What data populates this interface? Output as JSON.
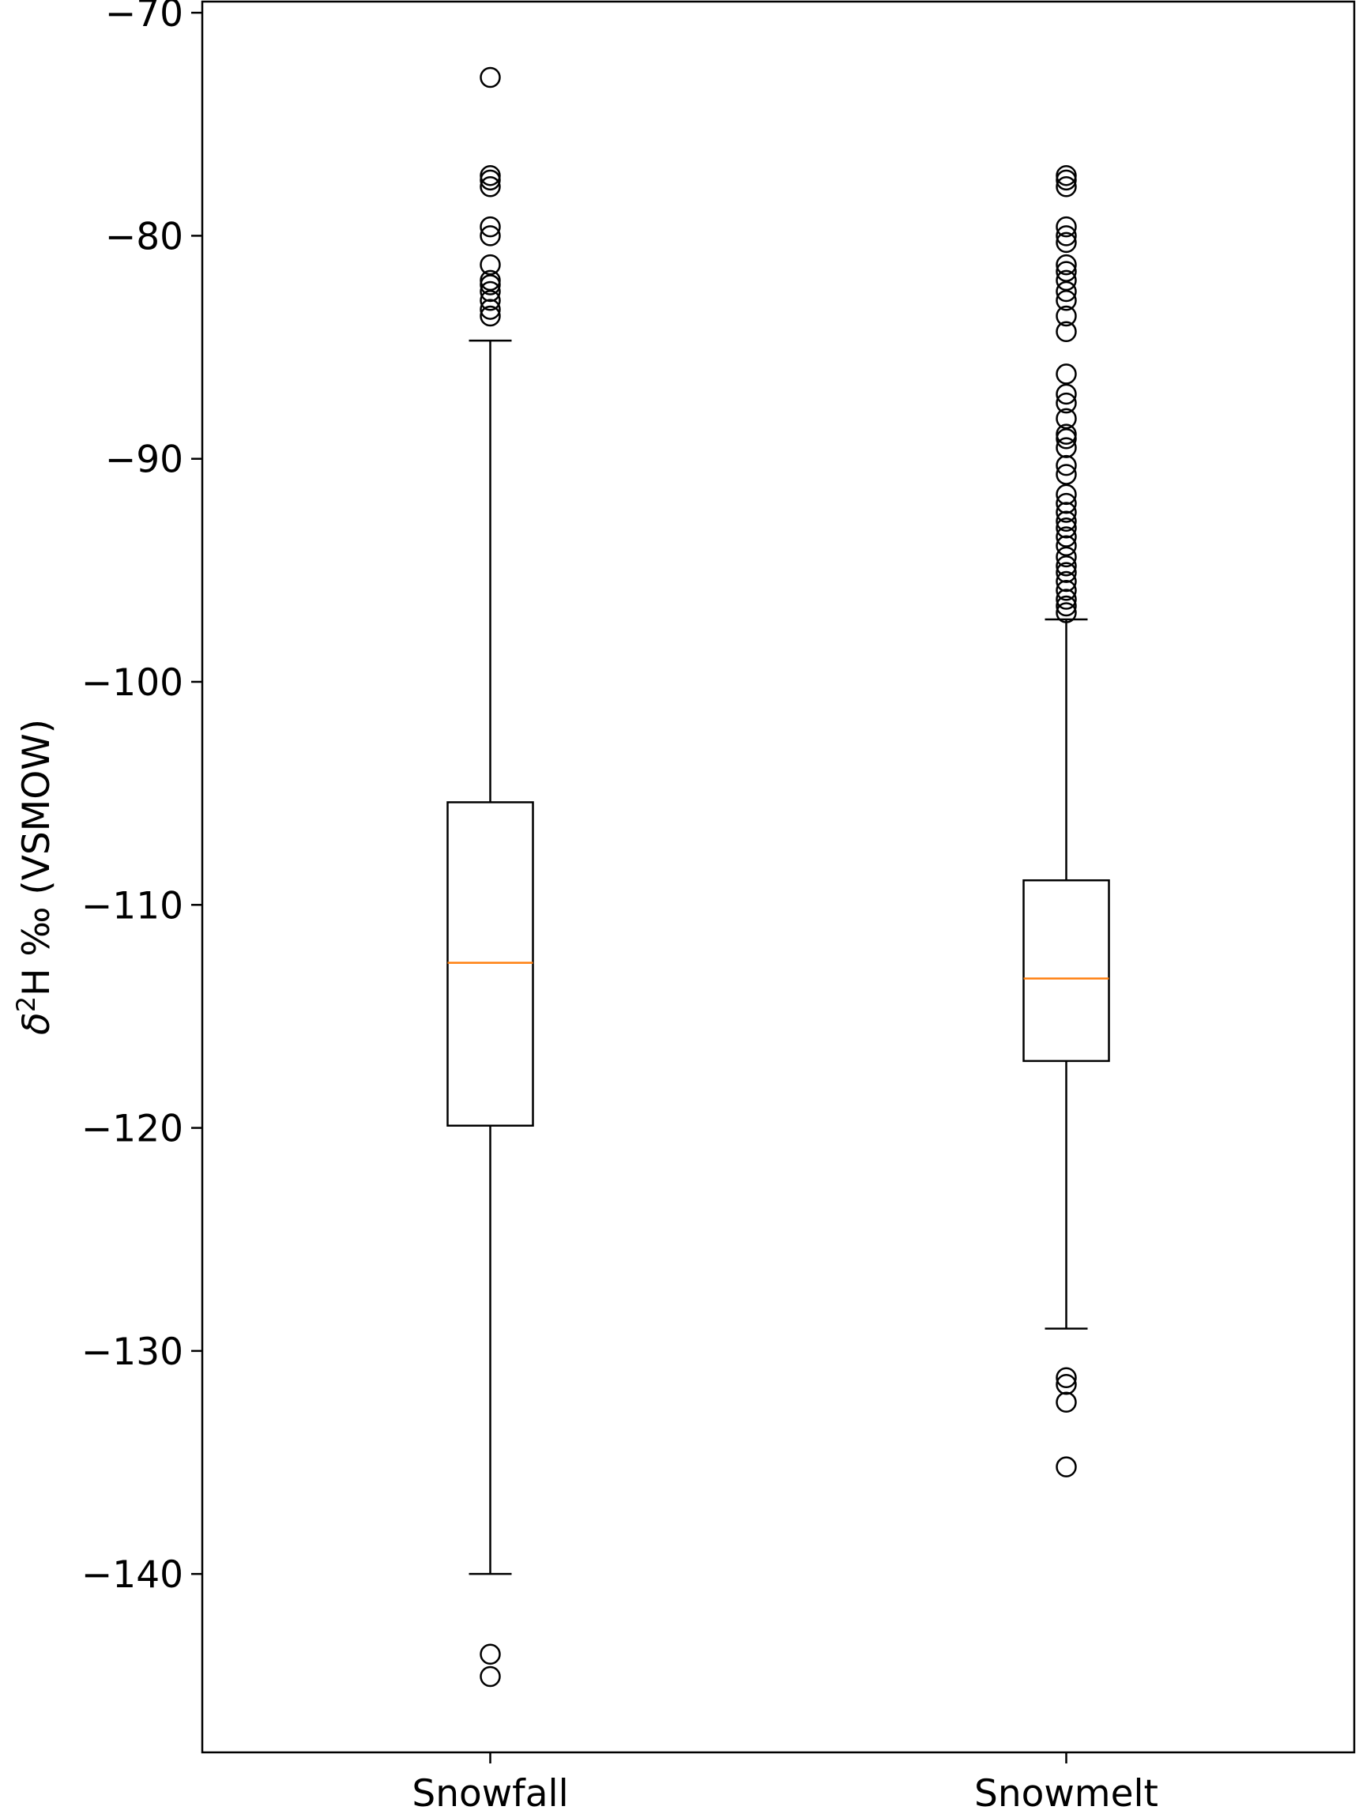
{
  "chart_data": {
    "type": "box",
    "title": "",
    "xlabel": "",
    "ylabel": {
      "prefix": "δ",
      "superscript": "2",
      "suffix": "H ‰ (VSMOW)"
    },
    "ylim": [
      -148,
      -69.5
    ],
    "yticks": [
      -70,
      -80,
      -90,
      -100,
      -110,
      -120,
      -130,
      -140
    ],
    "ytick_labels": [
      "−70",
      "−80",
      "−90",
      "−100",
      "−110",
      "−120",
      "−130",
      "−140"
    ],
    "grid": false,
    "colors": {
      "box": "#000000",
      "median": "#ff7f0e",
      "flier": "#000000"
    },
    "categories": [
      "Snowfall",
      "Snowmelt"
    ],
    "boxes": [
      {
        "name": "Snowfall",
        "whisker_low": -140.0,
        "q1": -119.9,
        "median": -112.6,
        "q3": -105.4,
        "whisker_high": -84.7,
        "fliers": [
          -72.9,
          -77.3,
          -77.5,
          -77.8,
          -79.6,
          -80.0,
          -81.3,
          -82.0,
          -82.2,
          -82.5,
          -82.9,
          -83.3,
          -83.6,
          -143.6,
          -144.6
        ]
      },
      {
        "name": "Snowmelt",
        "whisker_low": -129.0,
        "q1": -117.0,
        "median": -113.3,
        "q3": -108.9,
        "whisker_high": -97.2,
        "fliers": [
          -77.3,
          -77.5,
          -77.8,
          -79.6,
          -80.0,
          -80.3,
          -81.3,
          -81.6,
          -82.0,
          -82.5,
          -82.9,
          -83.6,
          -84.3,
          -86.2,
          -87.1,
          -87.5,
          -88.2,
          -88.9,
          -89.1,
          -89.5,
          -90.3,
          -90.7,
          -91.6,
          -92.0,
          -92.4,
          -92.8,
          -93.1,
          -93.5,
          -93.9,
          -94.4,
          -94.8,
          -95.1,
          -95.5,
          -95.9,
          -96.3,
          -96.6,
          -96.9,
          -131.2,
          -131.5,
          -132.3,
          -135.2
        ]
      }
    ]
  }
}
